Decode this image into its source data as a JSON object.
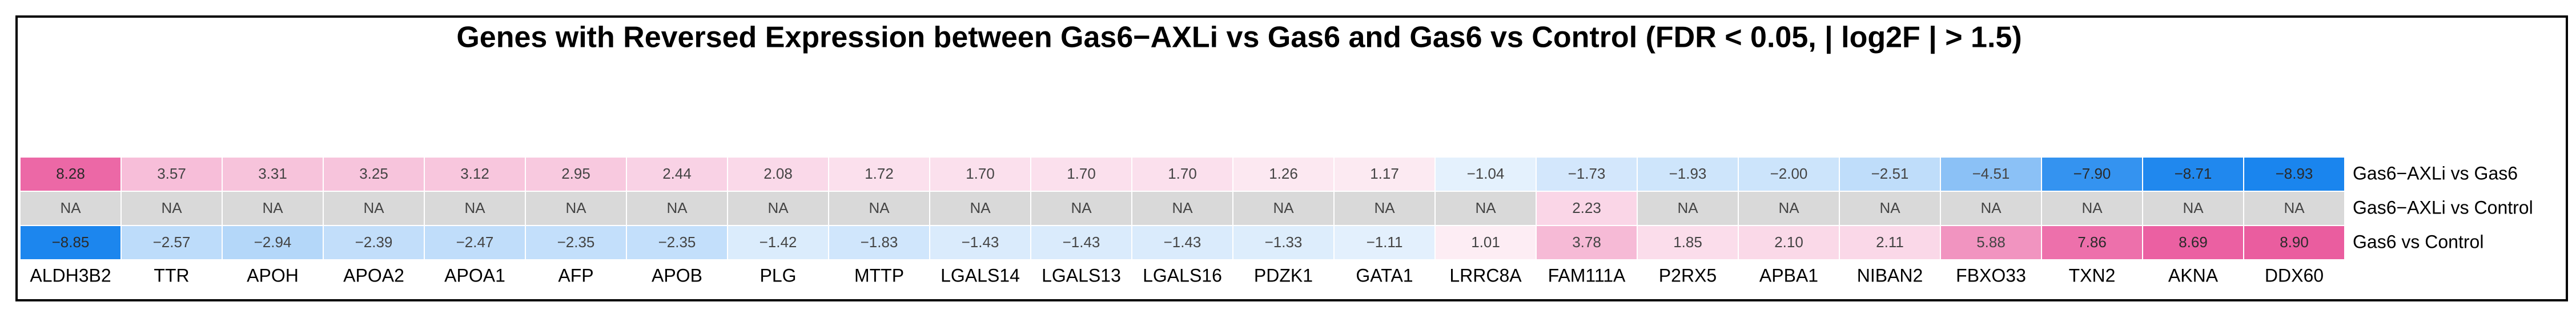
{
  "chart_data": {
    "type": "heatmap",
    "title": "Genes with Reversed Expression between Gas6−AXLi vs Gas6 and Gas6 vs Control (FDR < 0.05, | log2F | > 1.5)",
    "categories": [
      "ALDH3B2",
      "TTR",
      "APOH",
      "APOA2",
      "APOA1",
      "AFP",
      "APOB",
      "PLG",
      "MTTP",
      "LGALS14",
      "LGALS13",
      "LGALS16",
      "PDZK1",
      "GATA1",
      "LRRC8A",
      "FAM111A",
      "P2RX5",
      "APBA1",
      "NIBAN2",
      "FBXO33",
      "TXN2",
      "AKNA",
      "DDX60"
    ],
    "series": [
      {
        "name": "Gas6−AXLi vs Gas6",
        "values": [
          8.28,
          3.57,
          3.31,
          3.25,
          3.12,
          2.95,
          2.44,
          2.08,
          1.72,
          1.7,
          1.7,
          1.7,
          1.26,
          1.17,
          -1.04,
          -1.73,
          -1.93,
          -2.0,
          -2.51,
          -4.51,
          -7.9,
          -8.71,
          -8.93
        ],
        "value_labels": [
          "8.28",
          "3.57",
          "3.31",
          "3.25",
          "3.12",
          "2.95",
          "2.44",
          "2.08",
          "1.72",
          "1.70",
          "1.70",
          "1.70",
          "1.26",
          "1.17",
          "−1.04",
          "−1.73",
          "−1.93",
          "−2.00",
          "−2.51",
          "−4.51",
          "−7.90",
          "−8.71",
          "−8.93"
        ]
      },
      {
        "name": "Gas6−AXLi vs Control",
        "values": [
          null,
          null,
          null,
          null,
          null,
          null,
          null,
          null,
          null,
          null,
          null,
          null,
          null,
          null,
          null,
          2.23,
          null,
          null,
          null,
          null,
          null,
          null,
          null
        ],
        "value_labels": [
          "NA",
          "NA",
          "NA",
          "NA",
          "NA",
          "NA",
          "NA",
          "NA",
          "NA",
          "NA",
          "NA",
          "NA",
          "NA",
          "NA",
          "NA",
          "2.23",
          "NA",
          "NA",
          "NA",
          "NA",
          "NA",
          "NA",
          "NA"
        ]
      },
      {
        "name": "Gas6 vs Control",
        "values": [
          -8.85,
          -2.57,
          -2.94,
          -2.39,
          -2.47,
          -2.35,
          -2.35,
          -1.42,
          -1.83,
          -1.43,
          -1.43,
          -1.43,
          -1.33,
          -1.11,
          1.01,
          3.78,
          1.85,
          2.1,
          2.11,
          5.88,
          7.86,
          8.69,
          8.9
        ],
        "value_labels": [
          "−8.85",
          "−2.57",
          "−2.94",
          "−2.39",
          "−2.47",
          "−2.35",
          "−2.35",
          "−1.42",
          "−1.83",
          "−1.43",
          "−1.43",
          "−1.43",
          "−1.33",
          "−1.11",
          "1.01",
          "3.78",
          "1.85",
          "2.10",
          "2.11",
          "5.88",
          "7.86",
          "8.69",
          "8.90"
        ]
      }
    ],
    "low_color": "#1a85ee",
    "mid_color": "#ffffff",
    "high_color": "#ea5c9f",
    "na_color": "#d9d9d9"
  }
}
